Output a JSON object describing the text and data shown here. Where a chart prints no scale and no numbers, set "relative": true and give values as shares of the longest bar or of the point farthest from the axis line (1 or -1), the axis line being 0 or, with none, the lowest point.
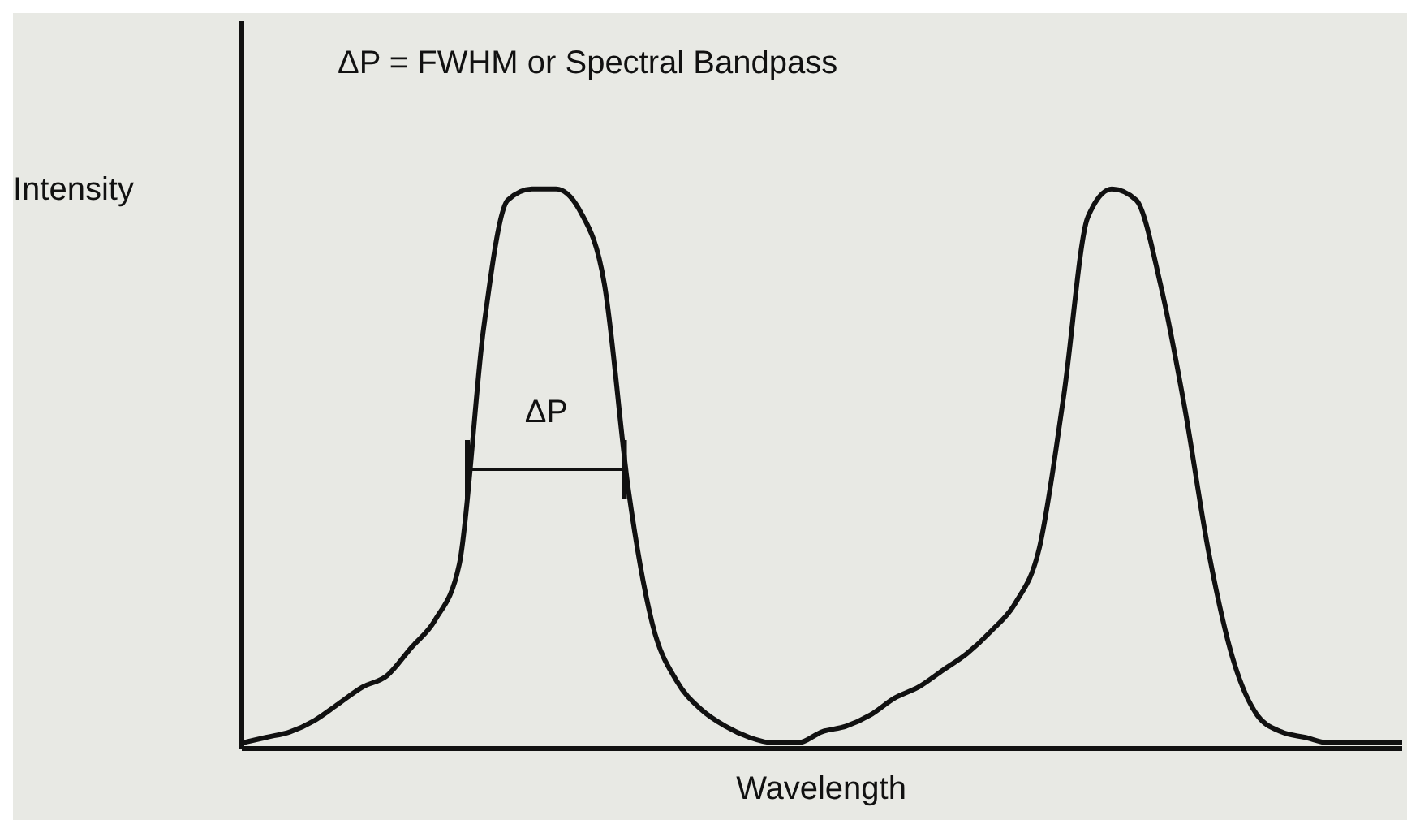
{
  "chart_data": {
    "type": "line",
    "title": "ΔP = FWHM or Spectral Bandpass",
    "xlabel": "Wavelength",
    "ylabel": "Intensity",
    "relative": true,
    "color": "#111111",
    "marker": "none",
    "line_style": "solid",
    "grid": false,
    "legend": false,
    "annotations": [
      "ΔP"
    ],
    "categories": [
      null,
      null,
      null,
      null,
      null,
      null,
      null,
      null,
      null,
      null,
      null,
      null,
      null,
      null,
      null,
      null,
      null,
      null,
      null,
      null,
      null,
      null,
      null,
      null,
      null,
      null,
      null,
      null,
      null,
      null,
      null,
      null,
      null,
      null,
      null,
      null,
      null,
      null,
      null,
      null,
      null,
      null,
      null,
      null,
      null,
      null,
      null,
      null,
      null
    ],
    "values": [
      0.01,
      0.02,
      0.03,
      0.05,
      0.08,
      0.11,
      0.13,
      0.18,
      0.23,
      0.33,
      0.75,
      0.98,
      1.0,
      1.0,
      0.96,
      0.83,
      0.46,
      0.22,
      0.12,
      0.07,
      0.04,
      0.02,
      0.01,
      0.01,
      0.03,
      0.04,
      0.06,
      0.09,
      0.11,
      0.14,
      0.17,
      0.21,
      0.26,
      0.36,
      0.63,
      0.95,
      1.0,
      0.98,
      0.83,
      0.61,
      0.35,
      0.16,
      0.06,
      0.03,
      0.02,
      0.01,
      0.01,
      0.01,
      0.01
    ]
  }
}
